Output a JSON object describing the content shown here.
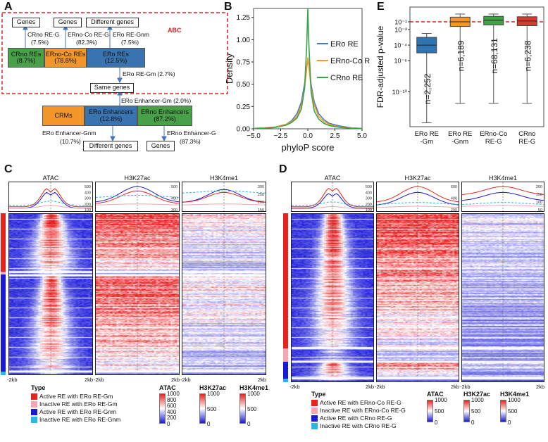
{
  "panels": {
    "a": "A",
    "b": "B",
    "c": "C",
    "d": "D",
    "e": "E"
  },
  "panelA": {
    "abc_label": "ABC",
    "genes_top_left": "Genes",
    "genes_top_mid": "Genes",
    "different_genes_top": "Different genes",
    "crno_re_g": "CRno RE-G",
    "crno_re_g_pct": "(7.5%)",
    "erno_co_re_g": "ERno-Co RE-G",
    "erno_co_re_g_pct": "(82.3%)",
    "ero_re_gnm": "ERo RE-Gnm",
    "ero_re_gnm_pct": "(7.5%)",
    "crno_res": "CRno REs",
    "crno_res_pct": "(8.7%)",
    "erno_co_res": "ERno-Co REs",
    "erno_co_res_pct": "(78.8%)",
    "ero_res": "ERo REs",
    "ero_res_pct": "(12.5%)",
    "ero_re_gm": "ERo RE-Gm (2.7%)",
    "same_genes": "Same genes",
    "ero_enh_gm": "ERo Enhancer-Gm (2.0%)",
    "crms": "CRMs",
    "ero_enh": "ERo Enhancers",
    "ero_enh_pct": "(12.8%)",
    "erno_enh": "ERno Enhancers",
    "erno_enh_pct": "(87.2%)",
    "ero_enh_gnm": "ERo Enhancer-Gnm",
    "ero_enh_gnm_pct": "(10.7%)",
    "erno_enh_g": "ERno Enhancer-G",
    "erno_enh_g_pct": "(87.3%)",
    "different_genes_bottom": "Different genes",
    "genes_bottom": "Genes"
  },
  "chart_data": [
    {
      "id": "B",
      "type": "line",
      "xlabel": "phyloP score",
      "ylabel": "Density",
      "xlim": [
        -5.0,
        5.0
      ],
      "ylim": [
        0,
        1.35
      ],
      "xticks": [
        "−5.0",
        "−2.5",
        "0.0",
        "2.5",
        "5.0"
      ],
      "yticks": [
        "0.00",
        "0.25",
        "0.50",
        "0.75",
        "1.00",
        "1.25"
      ],
      "series": [
        {
          "name": "ERo RE",
          "color": "#4a78c2",
          "x": [
            -5,
            -4,
            -3,
            -2,
            -1.5,
            -1,
            -0.6,
            -0.3,
            -0.1,
            0,
            0.1,
            0.3,
            0.6,
            1,
            1.5,
            2,
            3,
            4,
            5
          ],
          "y": [
            0.005,
            0.01,
            0.02,
            0.05,
            0.09,
            0.17,
            0.3,
            0.5,
            0.7,
            0.78,
            0.72,
            0.5,
            0.3,
            0.17,
            0.1,
            0.06,
            0.03,
            0.01,
            0.005
          ]
        },
        {
          "name": "ERno-Co RE",
          "color": "#f39a2a",
          "x": [
            -5,
            -4,
            -3,
            -2,
            -1.5,
            -1,
            -0.6,
            -0.3,
            -0.1,
            0,
            0.1,
            0.3,
            0.6,
            1,
            1.5,
            2,
            3,
            4,
            5
          ],
          "y": [
            0.005,
            0.01,
            0.02,
            0.05,
            0.08,
            0.14,
            0.26,
            0.45,
            0.68,
            0.8,
            0.7,
            0.46,
            0.26,
            0.14,
            0.08,
            0.05,
            0.02,
            0.01,
            0.005
          ]
        },
        {
          "name": "CRno RE",
          "color": "#3aa24a",
          "x": [
            -5,
            -4,
            -3,
            -2,
            -1.5,
            -1,
            -0.6,
            -0.3,
            -0.1,
            0,
            0.1,
            0.3,
            0.6,
            1,
            1.5,
            2,
            3,
            4,
            5
          ],
          "y": [
            0.003,
            0.006,
            0.015,
            0.04,
            0.07,
            0.12,
            0.22,
            0.45,
            0.95,
            1.35,
            0.95,
            0.42,
            0.2,
            0.11,
            0.06,
            0.035,
            0.015,
            0.006,
            0.003
          ]
        }
      ]
    },
    {
      "id": "E",
      "type": "box",
      "ylabel": "FDR-adjusted p-value",
      "yscale": "log10",
      "ylim_log10": [
        -14.5,
        0.9
      ],
      "yticks": [
        "10⁻¹",
        "10⁻²",
        "10⁻⁴",
        "10⁻⁶",
        "10⁻¹⁰"
      ],
      "ytick_values_log10": [
        -1,
        -2,
        -4,
        -6,
        -10
      ],
      "threshold_log10": -1,
      "categories": [
        "ERo RE\n-Gm",
        "ERo RE\n-Gnm",
        "ERno-Co\nRE-G",
        "CRno\nRE-G"
      ],
      "category_labels": [
        [
          "ERo RE",
          "-Gm"
        ],
        [
          "ERo RE",
          "-Gnm"
        ],
        [
          "ERno-Co",
          "RE-G"
        ],
        [
          "CRno",
          "RE-G"
        ]
      ],
      "counts": [
        "n=2,252",
        "n=6,189",
        "n=68,131",
        "n=6,238"
      ],
      "boxes": [
        {
          "color": "#2f74b3",
          "whisker_low": -14.0,
          "q1": -5.0,
          "median": -4.0,
          "q3": -3.0,
          "whisker_high": -2.5
        },
        {
          "color": "#f2962a",
          "whisker_low": -11.5,
          "q1": -1.6,
          "median": -1.0,
          "q3": -0.4,
          "whisker_high": 0.0
        },
        {
          "color": "#3fa343",
          "whisker_low": -11.5,
          "q1": -1.4,
          "median": -0.8,
          "q3": -0.3,
          "whisker_high": 0.0
        },
        {
          "color": "#d83a30",
          "whisker_low": -11.5,
          "q1": -1.5,
          "median": -0.9,
          "q3": -0.35,
          "whisker_high": 0.0
        }
      ]
    }
  ],
  "panelC": {
    "tracks": [
      "ATAC",
      "H3K27ac",
      "H3K4me1"
    ],
    "profile_ticks": [
      [
        "500",
        "400",
        "300",
        "200",
        "100"
      ],
      [
        "500",
        "400",
        "300"
      ],
      [
        "300",
        "250",
        "200",
        "150"
      ]
    ],
    "x_left": "-2kb",
    "x_right": "2kb",
    "legend_title": "Type",
    "legend_items": [
      {
        "label": "Active RE with ERo RE-Gm",
        "color": "#e8231e"
      },
      {
        "label": "Inactive RE with ERo RE-Gm",
        "color": "#f4a7b2"
      },
      {
        "label": "Active RE with ERo RE-Gnm",
        "color": "#1a1ad6"
      },
      {
        "label": "Inactive RE with ERo RE-Gnm",
        "color": "#2bb6e8"
      }
    ],
    "colorbars": [
      {
        "title": "ATAC",
        "ticks": [
          "1000",
          "800",
          "600",
          "400",
          "200",
          "0"
        ]
      },
      {
        "title": "H3K27ac",
        "ticks": [
          "1000",
          "500",
          "0"
        ]
      },
      {
        "title": "H3K4me1",
        "ticks": [
          "1000",
          "500",
          "0"
        ]
      }
    ]
  },
  "panelD": {
    "tracks": [
      "ATAC",
      "H3K27ac",
      "H3K4me1"
    ],
    "profile_ticks": [
      [
        "500",
        "400",
        "300",
        "200",
        "100"
      ],
      [
        "600",
        "400",
        "200"
      ],
      [
        "200",
        "150",
        "100",
        "50"
      ]
    ],
    "x_left": "-2kb",
    "x_right": "2kb",
    "legend_title": "Type",
    "legend_items": [
      {
        "label": "Active RE with ERno-Co RE-G",
        "color": "#e8231e"
      },
      {
        "label": "Inactive RE with ERno-Co RE-G",
        "color": "#f4a7b2"
      },
      {
        "label": "Active RE with CRno RE-G",
        "color": "#1a1ad6"
      },
      {
        "label": "Inactive RE with CRno RE-G",
        "color": "#2bb6e8"
      }
    ],
    "colorbars": [
      {
        "title": "ATAC",
        "ticks": [
          "1000",
          "500",
          "0"
        ]
      },
      {
        "title": "H3K27ac",
        "ticks": [
          "1000",
          "500",
          "0"
        ]
      },
      {
        "title": "H3K4me1",
        "ticks": [
          "1000",
          "500",
          "0"
        ]
      }
    ]
  },
  "colors": {
    "red": "#e8231e",
    "blue": "#1a1ad6",
    "pink": "#f4a7b2",
    "cyan": "#2bb6e8",
    "orange": "#f2962a",
    "green": "#3fa343",
    "steel": "#3a74b0",
    "abc_red": "#d62728"
  }
}
